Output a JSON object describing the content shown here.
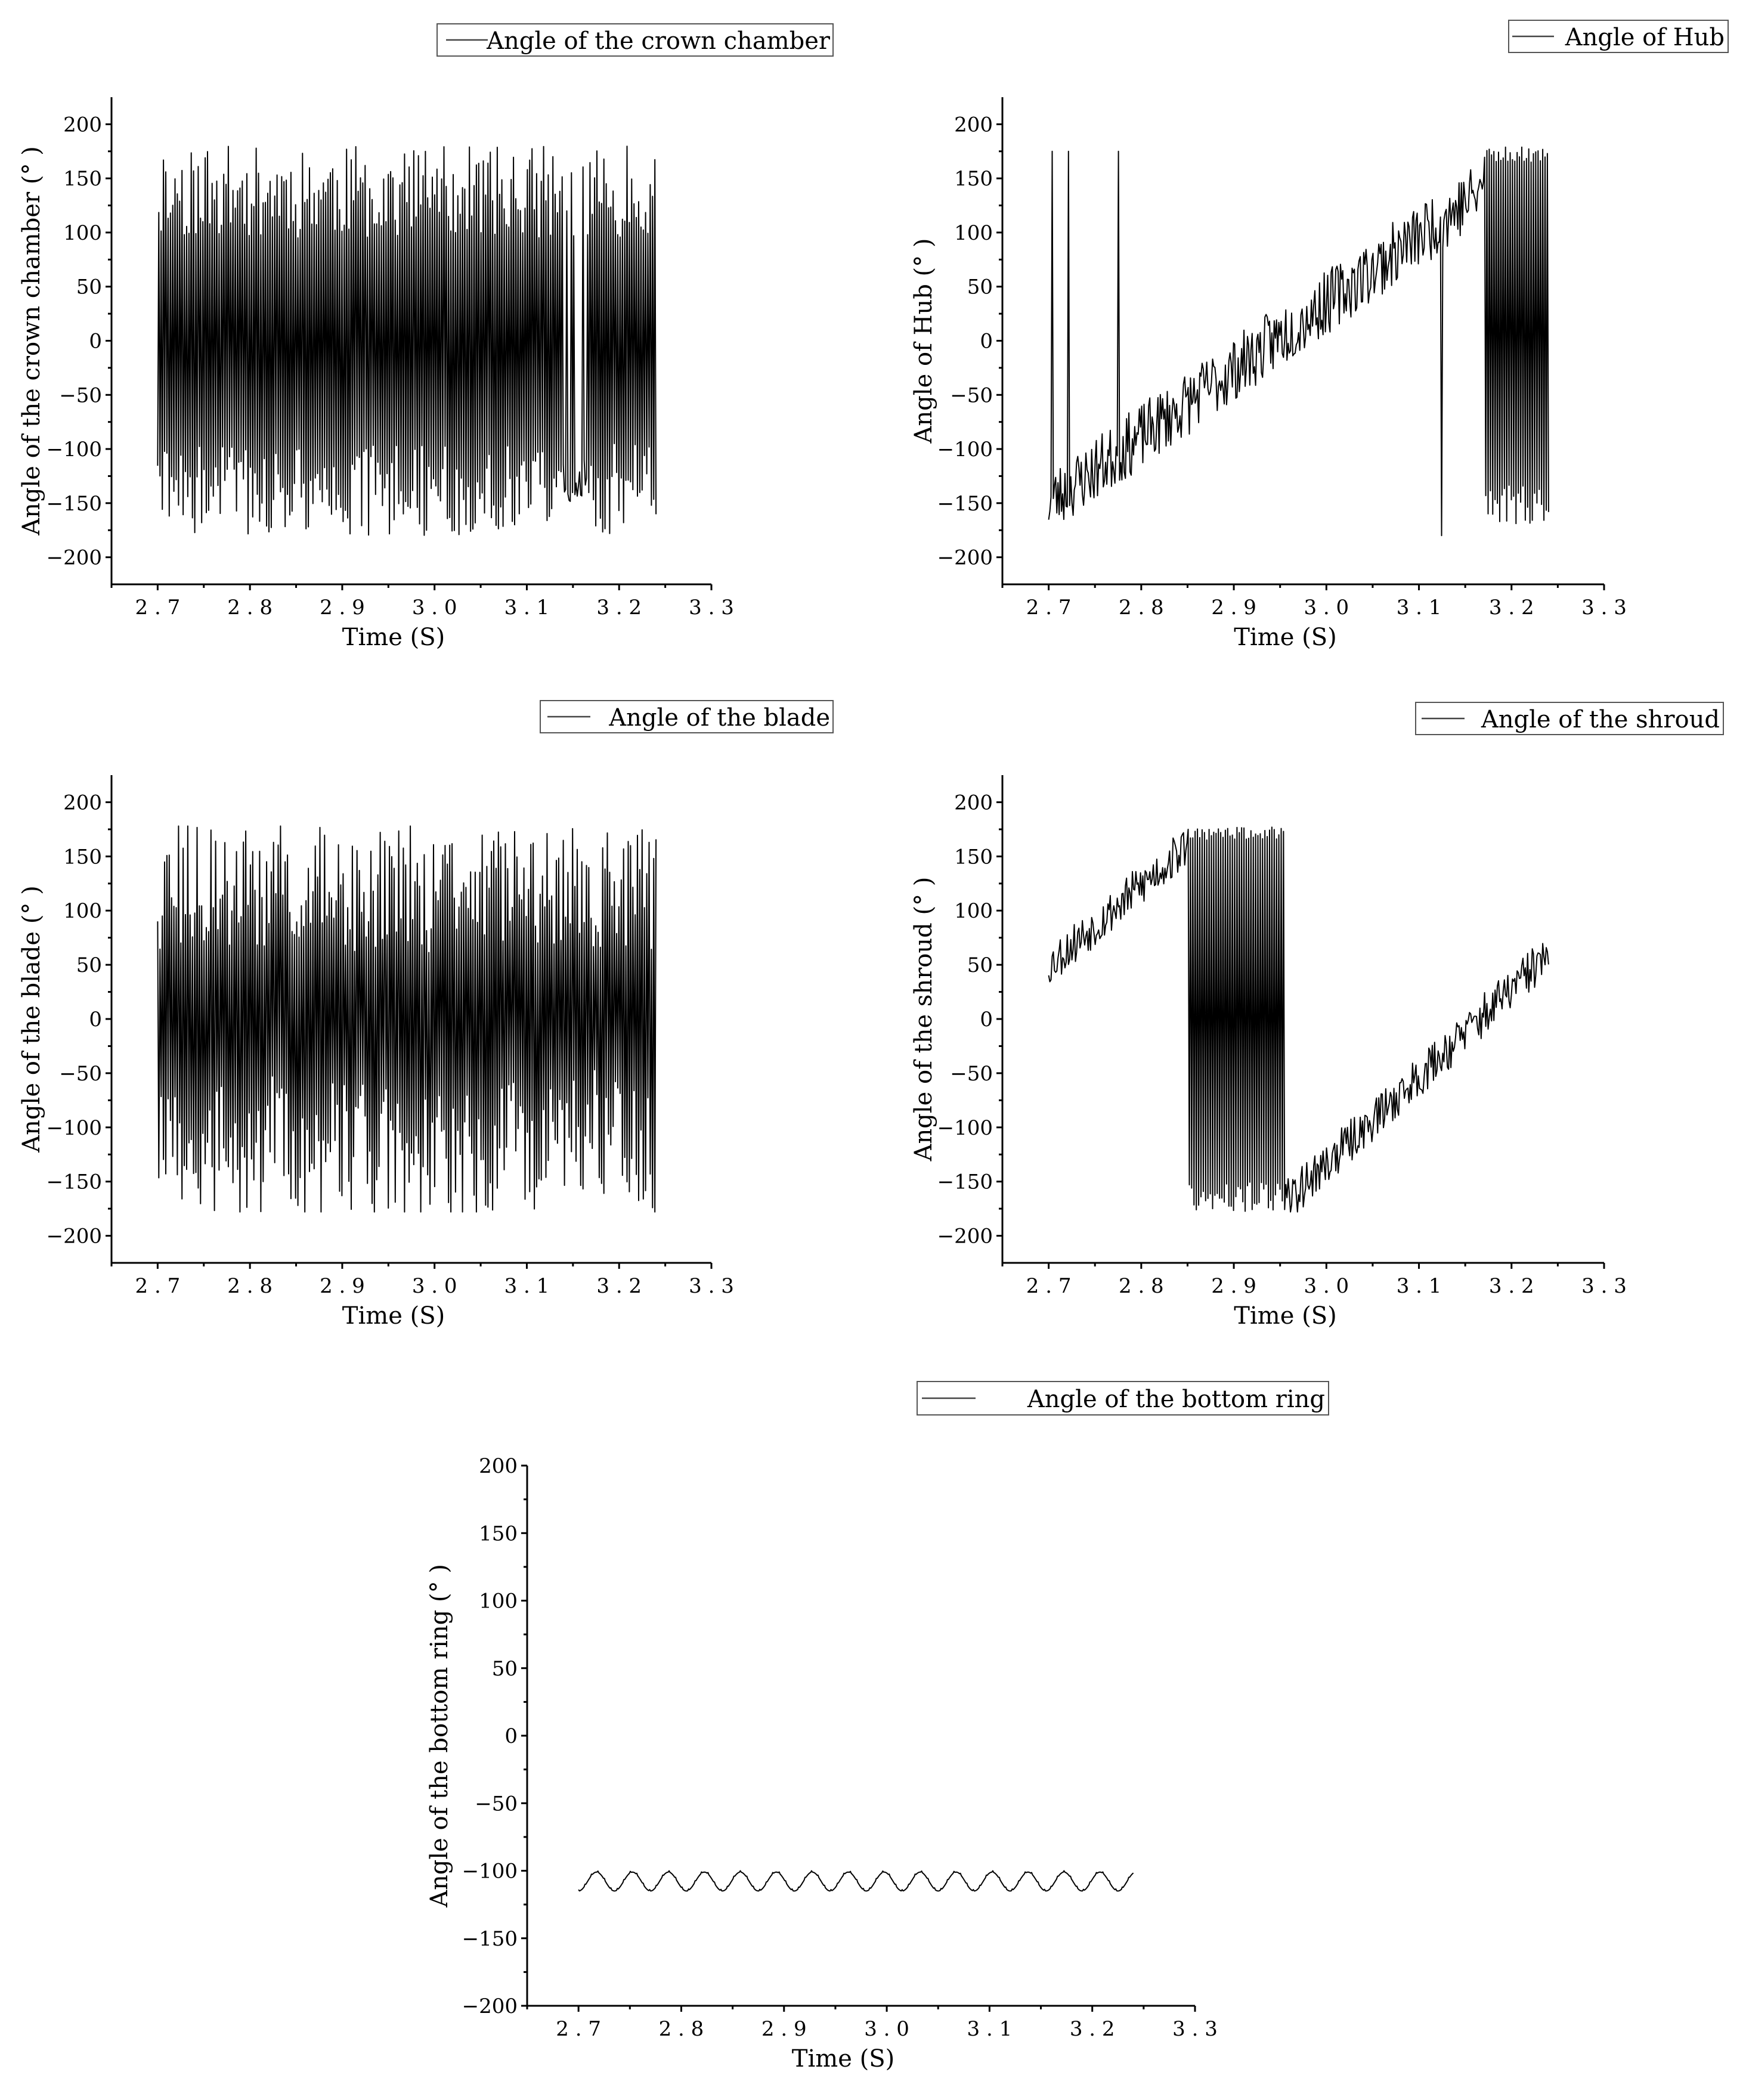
{
  "chart_data": [
    {
      "id": "crown",
      "type": "line",
      "legend": "Angle of the crown chamber",
      "xlabel": "Time (S)",
      "ylabel": "Angle of the crown chamber (° )",
      "xlim": [
        2.65,
        3.3
      ],
      "ylim": [
        -225,
        225
      ],
      "xticks": [
        "2.7",
        "2.8",
        "2.9",
        "3.0",
        "3.1",
        "3.2",
        "3.3"
      ],
      "yticks": [
        "200",
        "150",
        "100",
        "50",
        "0",
        "-50",
        "-100",
        "-150",
        "-200"
      ],
      "x_range": [
        2.7,
        3.24
      ],
      "pattern": "rapid oscillation between about -180 and 180",
      "series": [
        {
          "values_sampled": {
            "x": [
              2.7,
              2.71,
              2.72,
              2.73,
              2.74,
              2.75,
              2.76,
              2.77,
              2.78,
              2.79,
              2.8,
              2.85,
              2.9,
              2.95,
              3.0,
              3.05,
              3.1,
              3.14,
              3.16,
              3.18,
              3.2,
              3.22,
              3.24
            ],
            "y": [
              -120,
              170,
              -175,
              165,
              -170,
              168,
              -160,
              170,
              -175,
              170,
              -165,
              160,
              -170,
              165,
              -172,
              170,
              -175,
              -115,
              165,
              -110,
              170,
              -150,
              145
            ]
          }
        }
      ]
    },
    {
      "id": "hub",
      "type": "line",
      "legend": "Angle of Hub",
      "xlabel": "Time (S)",
      "ylabel": "Angle of Hub (° )",
      "xlim": [
        2.65,
        3.3
      ],
      "ylim": [
        -225,
        225
      ],
      "xticks": [
        "2.7",
        "2.8",
        "2.9",
        "3.0",
        "3.1",
        "3.2",
        "3.3"
      ],
      "yticks": [
        "200",
        "150",
        "100",
        "50",
        "0",
        "-50",
        "-100",
        "-150",
        "-200"
      ],
      "x_range": [
        2.7,
        3.24
      ],
      "pattern": "spikes near 2.70-2.78, then a noisy rise from about -150 to 150, oscillation after 3.17",
      "series": [
        {
          "values_sampled": {
            "x": [
              2.7,
              2.705,
              2.71,
              2.73,
              2.78,
              2.8,
              2.85,
              2.9,
              2.95,
              3.0,
              3.05,
              3.1,
              3.125,
              3.15,
              3.17,
              3.2,
              3.24
            ],
            "y": [
              -130,
              175,
              -160,
              175,
              155,
              -80,
              -40,
              0,
              20,
              50,
              90,
              120,
              -180,
              140,
              175,
              -175,
              -95
            ]
          }
        }
      ]
    },
    {
      "id": "blade",
      "type": "line",
      "legend": "Angle of the blade",
      "xlabel": "Time (S)",
      "ylabel": "Angle of the blade (° )",
      "xlim": [
        2.65,
        3.3
      ],
      "ylim": [
        -225,
        225
      ],
      "xticks": [
        "2.7",
        "2.8",
        "2.9",
        "3.0",
        "3.1",
        "3.2",
        "3.3"
      ],
      "yticks": [
        "200",
        "150",
        "100",
        "50",
        "0",
        "-50",
        "-100",
        "-150",
        "-200"
      ],
      "x_range": [
        2.7,
        3.24
      ],
      "pattern": "irregular oscillation between about -180 and 180",
      "series": [
        {
          "values_sampled": {
            "x": [
              2.7,
              2.705,
              2.71,
              2.72,
              2.75,
              2.8,
              2.85,
              2.9,
              2.95,
              3.0,
              3.05,
              3.1,
              3.15,
              3.2,
              3.24
            ],
            "y": [
              -150,
              175,
              -175,
              170,
              -120,
              -60,
              -170,
              175,
              140,
              -160,
              130,
              175,
              -170,
              175,
              -100
            ]
          }
        }
      ]
    },
    {
      "id": "shroud",
      "type": "line",
      "legend": "Angle of the shroud",
      "xlabel": "Time (S)",
      "ylabel": "Angle of the shroud (° )",
      "xlim": [
        2.65,
        3.3
      ],
      "ylim": [
        -225,
        225
      ],
      "xticks": [
        "2.7",
        "2.8",
        "2.9",
        "3.0",
        "3.1",
        "3.2",
        "3.3"
      ],
      "yticks": [
        "200",
        "150",
        "100",
        "50",
        "0",
        "-50",
        "-100",
        "-150",
        "-200"
      ],
      "x_range": [
        2.7,
        3.24
      ],
      "pattern": "rise from about 50 to 170, oscillation between 2.85 and 2.95, then a rise from about -170 to 50",
      "series": [
        {
          "values_sampled": {
            "x": [
              2.7,
              2.75,
              2.8,
              2.85,
              2.86,
              2.88,
              2.9,
              2.92,
              2.95,
              3.0,
              3.05,
              3.1,
              3.15,
              3.2,
              3.24
            ],
            "y": [
              55,
              90,
              120,
              160,
              -165,
              178,
              -175,
              178,
              -170,
              -130,
              -75,
              -40,
              0,
              40,
              90
            ]
          }
        }
      ]
    },
    {
      "id": "bottom",
      "type": "line",
      "legend": "Angle of the bottom ring",
      "xlabel": "Time (S)",
      "ylabel": "Angle of the bottom ring (° )",
      "xlim": [
        2.65,
        3.3
      ],
      "ylim": [
        -200,
        200
      ],
      "xticks": [
        "2.7",
        "2.8",
        "2.9",
        "3.0",
        "3.1",
        "3.2",
        "3.3"
      ],
      "yticks": [
        "200",
        "150",
        "100",
        "50",
        "0",
        "-50",
        "-100",
        "-150",
        "-200"
      ],
      "x_range": [
        2.7,
        3.24
      ],
      "pattern": "small periodic oscillation between about -115 and -101, period about 0.035",
      "series": [
        {
          "values_sampled": {
            "x": [
              2.7,
              2.717,
              2.735,
              2.752,
              2.77,
              2.787,
              2.805,
              3.24
            ],
            "y": [
              -115,
              -101,
              -115,
              -101,
              -115,
              -101,
              -115,
              -113
            ]
          }
        }
      ]
    }
  ]
}
